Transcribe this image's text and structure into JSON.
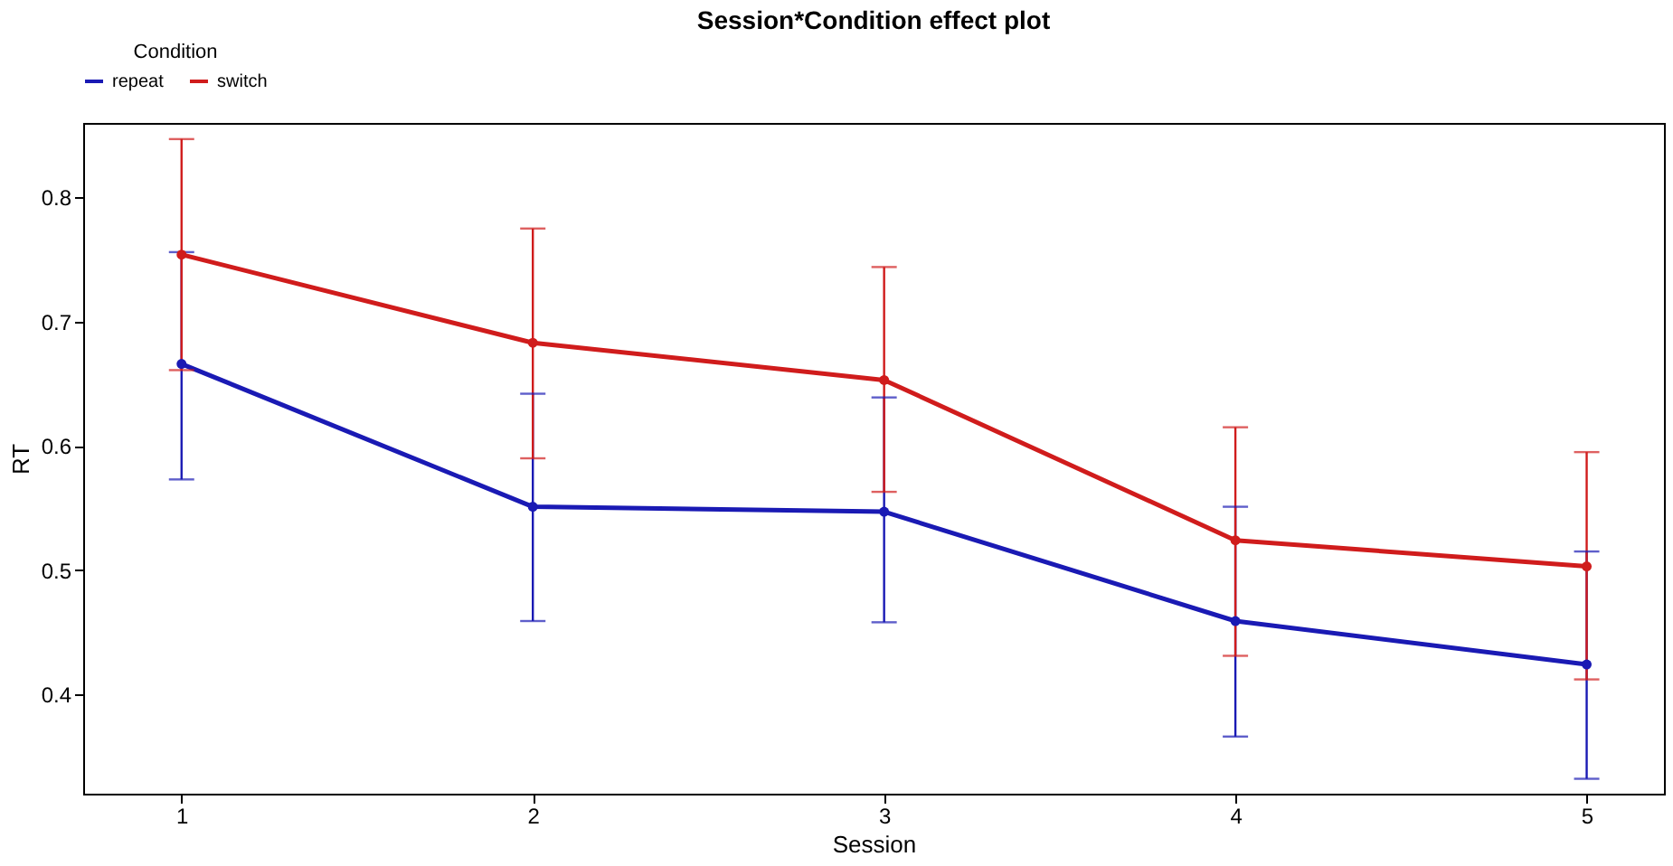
{
  "chart_data": {
    "type": "line",
    "title": "Session*Condition effect plot",
    "xlabel": "Session",
    "ylabel": "RT",
    "legend_title": "Condition",
    "legend": "top",
    "marker": "circle",
    "line_style": "solid",
    "grid": false,
    "x": [
      1,
      2,
      3,
      4,
      5
    ],
    "xlim": [
      0.72,
      5.22
    ],
    "xticks": [
      1,
      2,
      3,
      4,
      5
    ],
    "ylim": [
      0.32,
      0.86
    ],
    "yticks": [
      0.4,
      0.5,
      0.6,
      0.7,
      0.8
    ],
    "series": [
      {
        "name": "repeat",
        "color": "#1a1ab4",
        "values": [
          0.666,
          0.551,
          0.547,
          0.459,
          0.424
        ],
        "errors": [
          [
            0.573,
            0.756
          ],
          [
            0.459,
            0.642
          ],
          [
            0.458,
            0.639
          ],
          [
            0.366,
            0.551
          ],
          [
            0.332,
            0.515
          ]
        ]
      },
      {
        "name": "switch",
        "color": "#d01c1c",
        "values": [
          0.754,
          0.683,
          0.653,
          0.524,
          0.503
        ],
        "errors": [
          [
            0.661,
            0.847
          ],
          [
            0.59,
            0.775
          ],
          [
            0.563,
            0.744
          ],
          [
            0.431,
            0.615
          ],
          [
            0.412,
            0.595
          ]
        ]
      }
    ]
  }
}
